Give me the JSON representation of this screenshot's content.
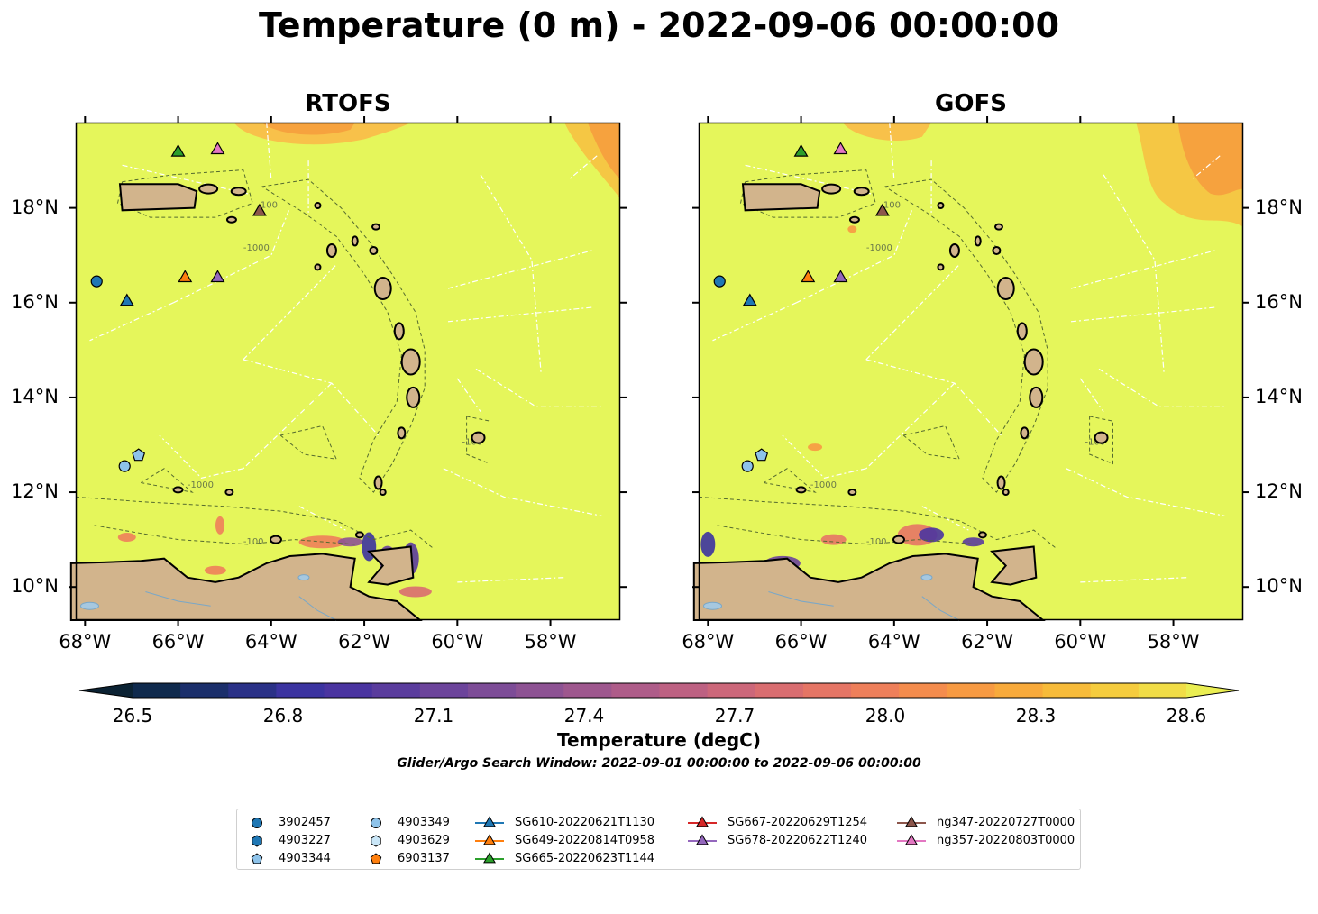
{
  "title": "Temperature (0 m) - 2022-09-06 00:00:00",
  "panels": [
    {
      "title": "RTOFS"
    },
    {
      "title": "GOFS"
    }
  ],
  "lon_ticks": [
    "68°W",
    "66°W",
    "64°W",
    "62°W",
    "60°W",
    "58°W"
  ],
  "lat_ticks": [
    "18°N",
    "16°N",
    "14°N",
    "12°N",
    "10°N"
  ],
  "map_extent": {
    "lon": [
      -68.2,
      -56.5
    ],
    "lat": [
      9.3,
      19.8
    ]
  },
  "contour_labels": [
    "-100",
    "-1000"
  ],
  "colorbar": {
    "label": "Temperature (degC)",
    "ticks": [
      "26.5",
      "26.8",
      "27.1",
      "27.4",
      "27.7",
      "28.0",
      "28.3",
      "28.6"
    ],
    "range": [
      26.5,
      28.6
    ],
    "colors": [
      "#0b2233",
      "#0f2a4d",
      "#1b2f6b",
      "#2a3187",
      "#3b33a0",
      "#4a34a0",
      "#5a3c9d",
      "#6c449b",
      "#7d4c97",
      "#8d5293",
      "#9e578e",
      "#ae5c89",
      "#bd6182",
      "#cc677a",
      "#d96d70",
      "#e57565",
      "#ee7f5a",
      "#f48c4d",
      "#f79a42",
      "#f8aa3b",
      "#f7bb3a",
      "#f5cc3e",
      "#f1dd47",
      "#eaee52"
    ]
  },
  "search_window": "Glider/Argo Search Window: 2022-09-01 00:00:00 to 2022-09-06 00:00:00",
  "legend": {
    "items": [
      {
        "label": "3902457",
        "marker": "circle",
        "color": "#1f77b4"
      },
      {
        "label": "4903227",
        "marker": "hexagon",
        "color": "#1f77b4"
      },
      {
        "label": "4903344",
        "marker": "pentagon",
        "color": "#8ec3ea"
      },
      {
        "label": "4903349",
        "marker": "circle",
        "color": "#8ec3ea"
      },
      {
        "label": "4903629",
        "marker": "hexagon",
        "color": "#c9e6f7"
      },
      {
        "label": "6903137",
        "marker": "pentagon",
        "color": "#ff7f0e"
      },
      {
        "label": "SG610-20220621T1130",
        "marker": "triangle-line",
        "color": "#1f77b4"
      },
      {
        "label": "SG649-20220814T0958",
        "marker": "triangle-line",
        "color": "#ff7f0e"
      },
      {
        "label": "SG665-20220623T1144",
        "marker": "triangle-line",
        "color": "#2ca02c"
      },
      {
        "label": "SG667-20220629T1254",
        "marker": "triangle-line",
        "color": "#d62728"
      },
      {
        "label": "SG678-20220622T1240",
        "marker": "triangle-line",
        "color": "#9467bd"
      },
      {
        "label": "ng347-20220727T0000",
        "marker": "triangle-line",
        "color": "#8c564b"
      },
      {
        "label": "ng357-20220803T0000",
        "marker": "triangle-line",
        "color": "#e377c2"
      }
    ]
  },
  "platforms": [
    {
      "id": "3902457",
      "marker": "circle",
      "color": "#1f77b4",
      "lon": -67.75,
      "lat": 16.45
    },
    {
      "id": "SG610-20220621T1130",
      "marker": "triangle",
      "color": "#1f77b4",
      "lon": -67.1,
      "lat": 16.05
    },
    {
      "id": "4903349",
      "marker": "circle",
      "color": "#8ec3ea",
      "lon": -67.15,
      "lat": 12.55
    },
    {
      "id": "4903344",
      "marker": "pentagon",
      "color": "#8ec3ea",
      "lon": -66.85,
      "lat": 12.78
    },
    {
      "id": "SG665-20220623T1144",
      "marker": "triangle",
      "color": "#2ca02c",
      "lon": -66.0,
      "lat": 19.2
    },
    {
      "id": "ng357-20220803T0000",
      "marker": "triangle",
      "color": "#e377c2",
      "lon": -65.15,
      "lat": 19.25
    },
    {
      "id": "SG649-20220814T0958",
      "marker": "triangle",
      "color": "#ff7f0e",
      "lon": -65.85,
      "lat": 16.55
    },
    {
      "id": "SG678-20220622T1240",
      "marker": "triangle",
      "color": "#9467bd",
      "lon": -65.15,
      "lat": 16.55
    },
    {
      "id": "ng347-20220727T0000",
      "marker": "triangle",
      "color": "#8c564b",
      "lon": -64.25,
      "lat": 17.95
    }
  ]
}
